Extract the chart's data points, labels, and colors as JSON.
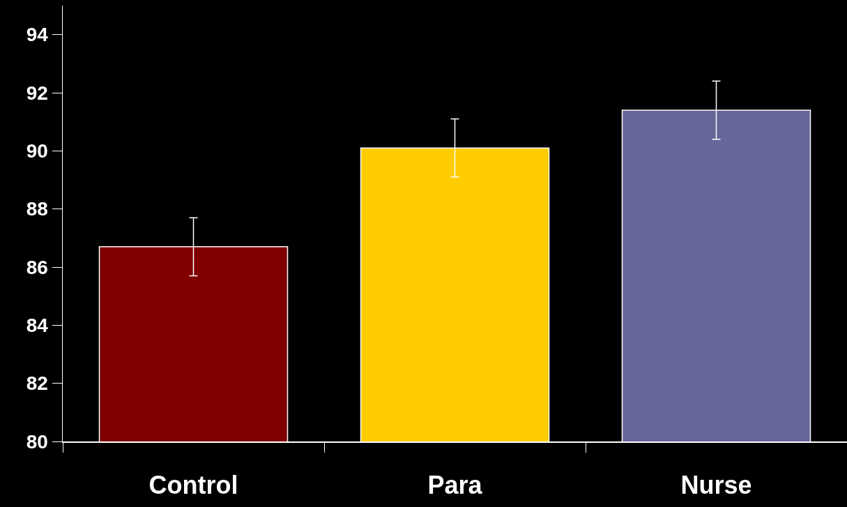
{
  "chart_data": {
    "type": "bar",
    "categories": [
      "Control",
      "Para",
      "Nurse"
    ],
    "values": [
      86.7,
      90.1,
      91.4
    ],
    "errors": [
      1,
      1,
      1
    ],
    "colors": [
      "#800000",
      "#ffcc00",
      "#666699"
    ],
    "ylim": [
      80,
      95
    ],
    "yticks": [
      80,
      82,
      84,
      86,
      88,
      90,
      92,
      94
    ],
    "grid": false
  }
}
